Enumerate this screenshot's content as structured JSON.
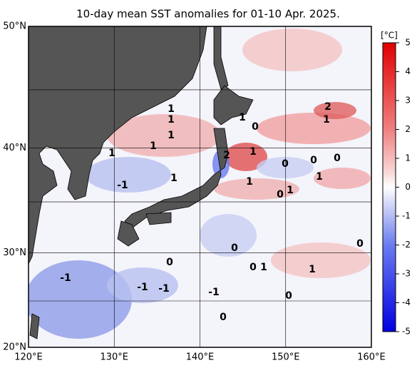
{
  "title": "10-day mean SST anomalies for 01-10 Apr. 2025.",
  "lon_ticks": [
    {
      "value": 120,
      "label": "120°E"
    },
    {
      "value": 130,
      "label": "130°E"
    },
    {
      "value": 140,
      "label": "140°E"
    },
    {
      "value": 150,
      "label": "150°E"
    },
    {
      "value": 160,
      "label": "160°E"
    }
  ],
  "lat_ticks": [
    {
      "value": 20,
      "label": "20°N"
    },
    {
      "value": 30,
      "label": "30°N"
    },
    {
      "value": 40,
      "label": "40°N"
    },
    {
      "value": 50,
      "label": "50°N"
    }
  ],
  "lat_grid": [
    25,
    35,
    45
  ],
  "colorbar": {
    "unit": "[°C]",
    "ticks": [
      5,
      4,
      3,
      2,
      1,
      0,
      -1,
      -2,
      -3,
      -4,
      -5
    ]
  },
  "contour_labels": [
    "1",
    "1",
    "1",
    "-1",
    "1",
    "1",
    "1",
    "2",
    "1",
    "0",
    "2",
    "1",
    "0",
    "1",
    "0",
    "0",
    "1",
    "1",
    "0",
    "0",
    "-1",
    "-1",
    "-1",
    "-1",
    "1",
    "0",
    "1",
    "0",
    "0",
    "0",
    "0",
    "1"
  ]
}
